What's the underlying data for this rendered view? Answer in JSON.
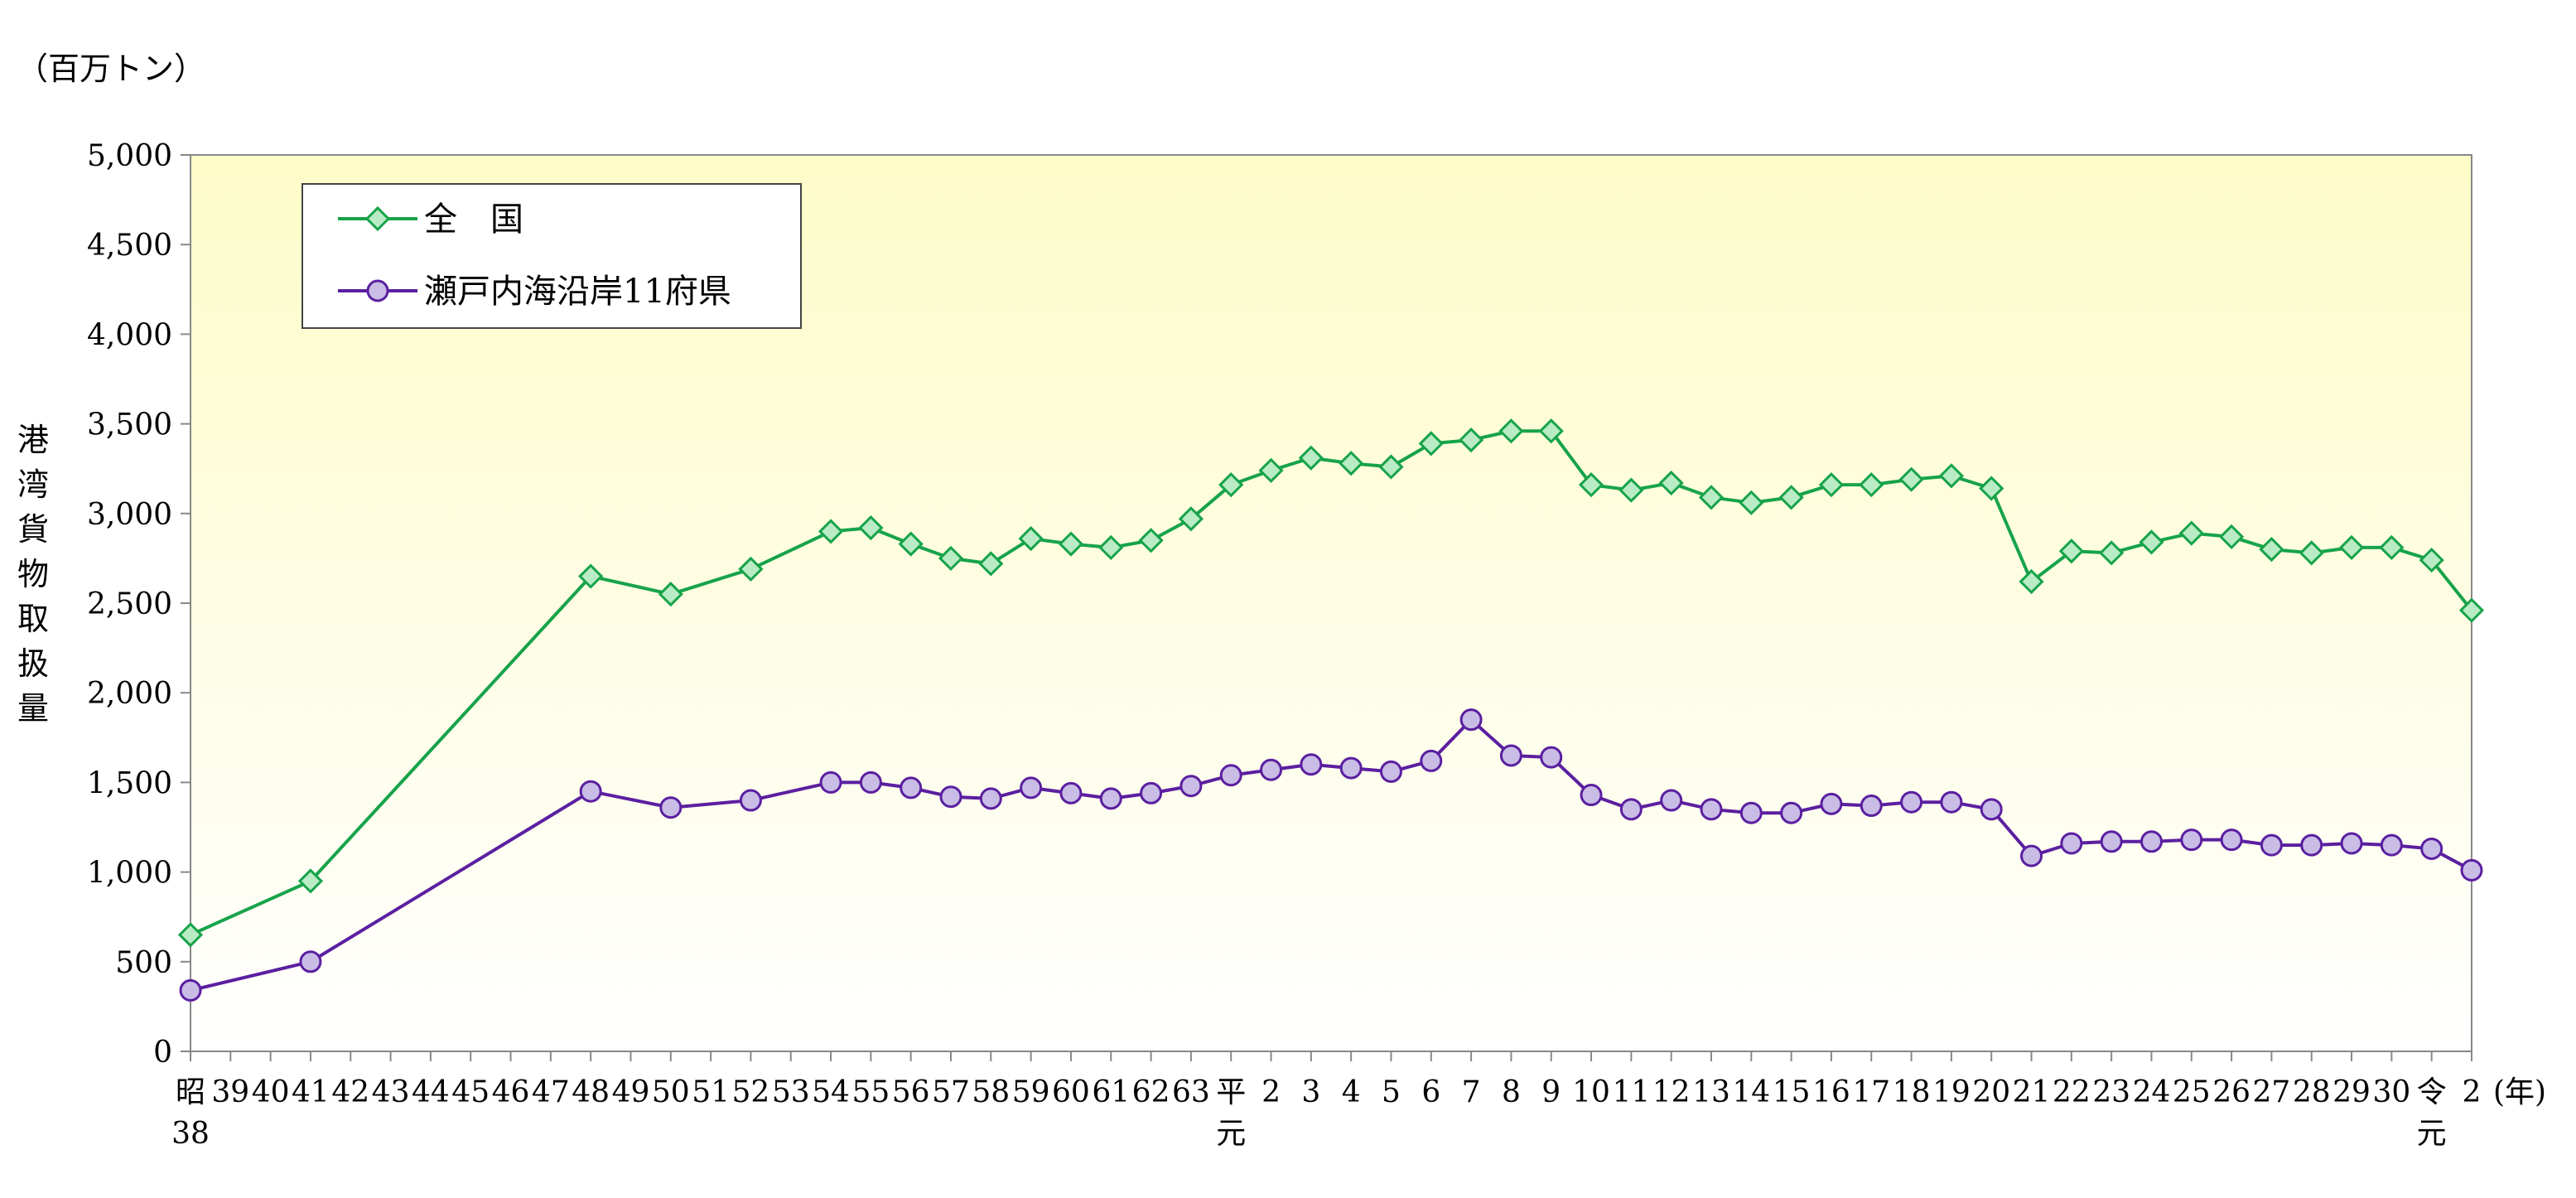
{
  "chart_data": {
    "type": "line",
    "unit_label": "（百万トン）",
    "ylabel": "港湾貨物取扱量",
    "xunit": "(年)",
    "ylim": [
      0,
      5000
    ],
    "yticks": [
      0,
      500,
      1000,
      1500,
      2000,
      2500,
      3000,
      3500,
      4000,
      4500,
      5000
    ],
    "ytick_labels": [
      "0",
      "500",
      "1,000",
      "1,500",
      "2,000",
      "2,500",
      "3,000",
      "3,500",
      "4,000",
      "4,500",
      "5,000"
    ],
    "background": "gradient light-yellow (top) to white (bottom)",
    "grid": false,
    "legend_position": "top-left",
    "x_labels": [
      [
        "昭",
        "38"
      ],
      [
        "39"
      ],
      [
        "40"
      ],
      [
        "41"
      ],
      [
        "42"
      ],
      [
        "43"
      ],
      [
        "44"
      ],
      [
        "45"
      ],
      [
        "46"
      ],
      [
        "47"
      ],
      [
        "48"
      ],
      [
        "49"
      ],
      [
        "50"
      ],
      [
        "51"
      ],
      [
        "52"
      ],
      [
        "53"
      ],
      [
        "54"
      ],
      [
        "55"
      ],
      [
        "56"
      ],
      [
        "57"
      ],
      [
        "58"
      ],
      [
        "59"
      ],
      [
        "60"
      ],
      [
        "61"
      ],
      [
        "62"
      ],
      [
        "63"
      ],
      [
        "平",
        "元"
      ],
      [
        "2"
      ],
      [
        "3"
      ],
      [
        "4"
      ],
      [
        "5"
      ],
      [
        "6"
      ],
      [
        "7"
      ],
      [
        "8"
      ],
      [
        "9"
      ],
      [
        "10"
      ],
      [
        "11"
      ],
      [
        "12"
      ],
      [
        "13"
      ],
      [
        "14"
      ],
      [
        "15"
      ],
      [
        "16"
      ],
      [
        "17"
      ],
      [
        "18"
      ],
      [
        "19"
      ],
      [
        "20"
      ],
      [
        "21"
      ],
      [
        "22"
      ],
      [
        "23"
      ],
      [
        "24"
      ],
      [
        "25"
      ],
      [
        "26"
      ],
      [
        "27"
      ],
      [
        "28"
      ],
      [
        "29"
      ],
      [
        "30"
      ],
      [
        "令",
        "元"
      ],
      [
        "2"
      ]
    ],
    "series": [
      {
        "name": "全　国",
        "color": "#17a34a",
        "fill": "#b9ecc4",
        "marker": "diamond",
        "points": [
          [
            "昭38",
            650
          ],
          [
            "昭41",
            950
          ],
          [
            "昭48",
            2650
          ],
          [
            "昭50",
            2550
          ],
          [
            "昭52",
            2690
          ],
          [
            "昭54",
            2900
          ],
          [
            "昭55",
            2920
          ],
          [
            "昭56",
            2830
          ],
          [
            "昭57",
            2750
          ],
          [
            "昭58",
            2720
          ],
          [
            "昭59",
            2860
          ],
          [
            "昭60",
            2830
          ],
          [
            "昭61",
            2810
          ],
          [
            "昭62",
            2850
          ],
          [
            "昭63",
            2970
          ],
          [
            "平元",
            3160
          ],
          [
            "平2",
            3240
          ],
          [
            "平3",
            3310
          ],
          [
            "平4",
            3280
          ],
          [
            "平5",
            3260
          ],
          [
            "平6",
            3390
          ],
          [
            "平7",
            3410
          ],
          [
            "平8",
            3460
          ],
          [
            "平9",
            3460
          ],
          [
            "平10",
            3160
          ],
          [
            "平11",
            3130
          ],
          [
            "平12",
            3170
          ],
          [
            "平13",
            3090
          ],
          [
            "平14",
            3060
          ],
          [
            "平15",
            3090
          ],
          [
            "平16",
            3160
          ],
          [
            "平17",
            3160
          ],
          [
            "平18",
            3190
          ],
          [
            "平19",
            3210
          ],
          [
            "平20",
            3140
          ],
          [
            "平21",
            2620
          ],
          [
            "平22",
            2790
          ],
          [
            "平23",
            2780
          ],
          [
            "平24",
            2840
          ],
          [
            "平25",
            2890
          ],
          [
            "平26",
            2870
          ],
          [
            "平27",
            2800
          ],
          [
            "平28",
            2780
          ],
          [
            "平29",
            2810
          ],
          [
            "平30",
            2810
          ],
          [
            "令元",
            2740
          ],
          [
            "令2",
            2460
          ]
        ]
      },
      {
        "name": "瀬戸内海沿岸11府県",
        "color": "#5b1fa0",
        "fill": "#c9bde6",
        "marker": "circle",
        "points": [
          [
            "昭38",
            340
          ],
          [
            "昭41",
            500
          ],
          [
            "昭48",
            1450
          ],
          [
            "昭50",
            1360
          ],
          [
            "昭52",
            1400
          ],
          [
            "昭54",
            1500
          ],
          [
            "昭55",
            1500
          ],
          [
            "昭56",
            1470
          ],
          [
            "昭57",
            1420
          ],
          [
            "昭58",
            1410
          ],
          [
            "昭59",
            1470
          ],
          [
            "昭60",
            1440
          ],
          [
            "昭61",
            1410
          ],
          [
            "昭62",
            1440
          ],
          [
            "昭63",
            1480
          ],
          [
            "平元",
            1540
          ],
          [
            "平2",
            1570
          ],
          [
            "平3",
            1600
          ],
          [
            "平4",
            1580
          ],
          [
            "平5",
            1560
          ],
          [
            "平6",
            1620
          ],
          [
            "平7",
            1850
          ],
          [
            "平8",
            1650
          ],
          [
            "平9",
            1640
          ],
          [
            "平10",
            1430
          ],
          [
            "平11",
            1350
          ],
          [
            "平12",
            1400
          ],
          [
            "平13",
            1350
          ],
          [
            "平14",
            1330
          ],
          [
            "平15",
            1330
          ],
          [
            "平16",
            1380
          ],
          [
            "平17",
            1370
          ],
          [
            "平18",
            1390
          ],
          [
            "平19",
            1390
          ],
          [
            "平20",
            1350
          ],
          [
            "平21",
            1090
          ],
          [
            "平22",
            1160
          ],
          [
            "平23",
            1170
          ],
          [
            "平24",
            1170
          ],
          [
            "平25",
            1180
          ],
          [
            "平26",
            1180
          ],
          [
            "平27",
            1150
          ],
          [
            "平28",
            1150
          ],
          [
            "平29",
            1160
          ],
          [
            "平30",
            1150
          ],
          [
            "令元",
            1130
          ],
          [
            "令2",
            1010
          ]
        ]
      }
    ]
  }
}
